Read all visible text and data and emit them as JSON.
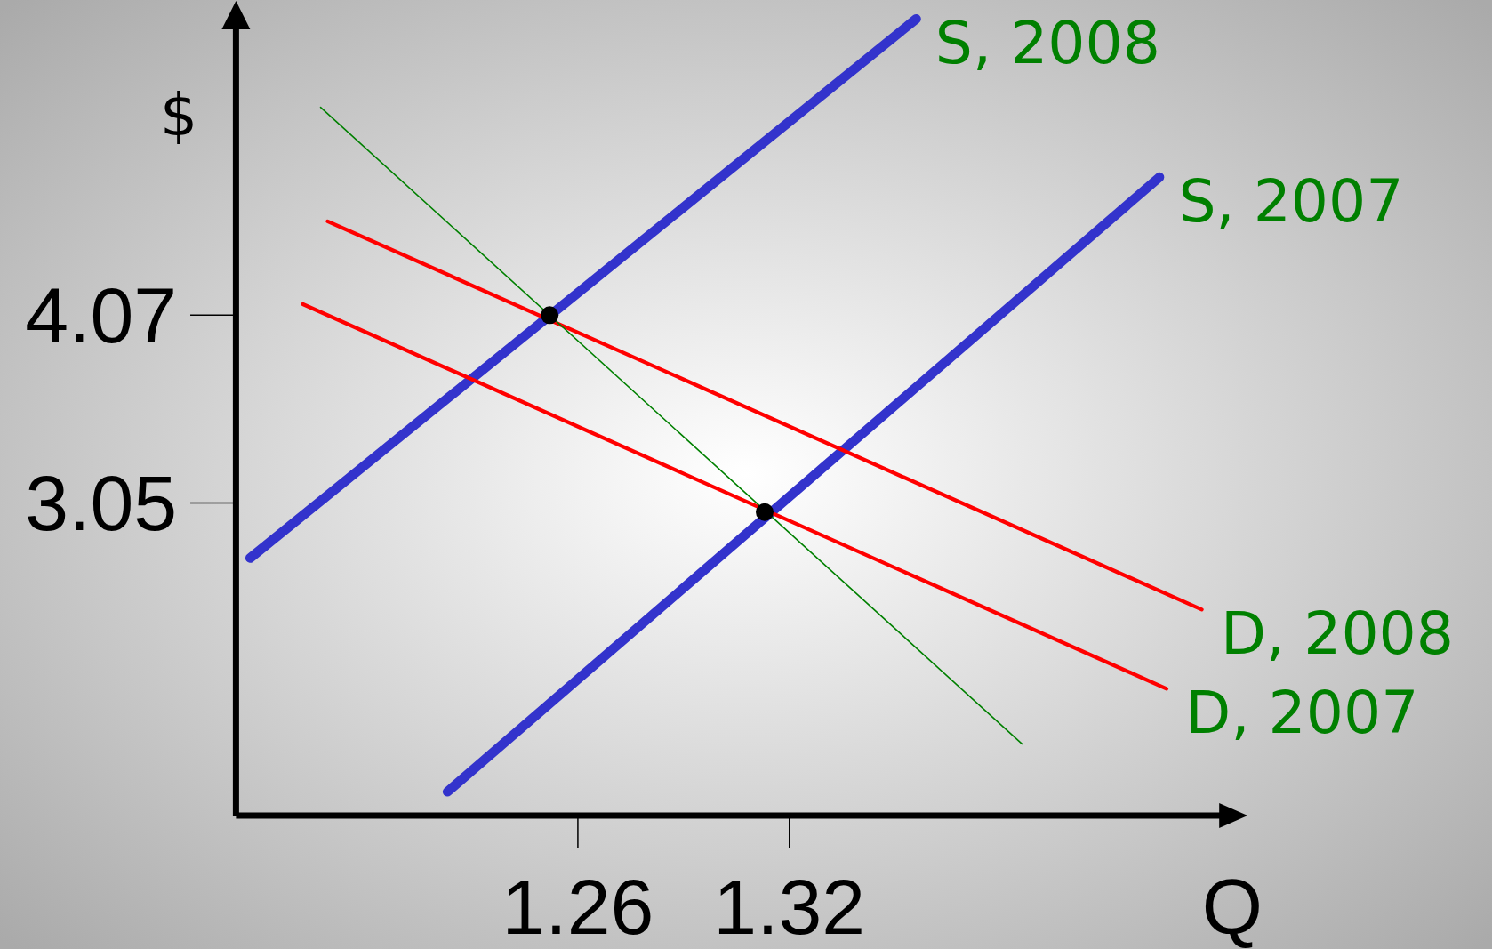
{
  "chart_data": {
    "type": "line",
    "xlabel": "Q",
    "ylabel": "$",
    "xlim": [
      1.163,
      1.447
    ],
    "ylim": [
      1.35,
      5.72
    ],
    "xticks": [
      1.26,
      1.32
    ],
    "yticks": [
      3.05,
      4.07
    ],
    "grid": false,
    "legend": false,
    "series": [
      {
        "name": "S, 2008",
        "color": "#3333cc",
        "x": [
          1.167,
          1.356
        ],
        "values": [
          2.75,
          5.68
        ]
      },
      {
        "name": "S, 2007",
        "color": "#3333cc",
        "x": [
          1.223,
          1.425
        ],
        "values": [
          1.48,
          4.82
        ]
      },
      {
        "name": "D, 2008",
        "color": "#ff0000",
        "x": [
          1.189,
          1.437
        ],
        "values": [
          4.58,
          2.47
        ]
      },
      {
        "name": "D, 2007",
        "color": "#ff0000",
        "x": [
          1.182,
          1.427
        ],
        "values": [
          4.13,
          2.04
        ]
      },
      {
        "color": "#008000",
        "x": [
          1.187,
          1.386
        ],
        "values": [
          5.2,
          1.74
        ]
      },
      {
        "type": "scatter",
        "color": "#000000",
        "marker": "circle",
        "x": [
          1.252,
          1.313
        ],
        "values": [
          4.07,
          3.0
        ]
      }
    ]
  }
}
